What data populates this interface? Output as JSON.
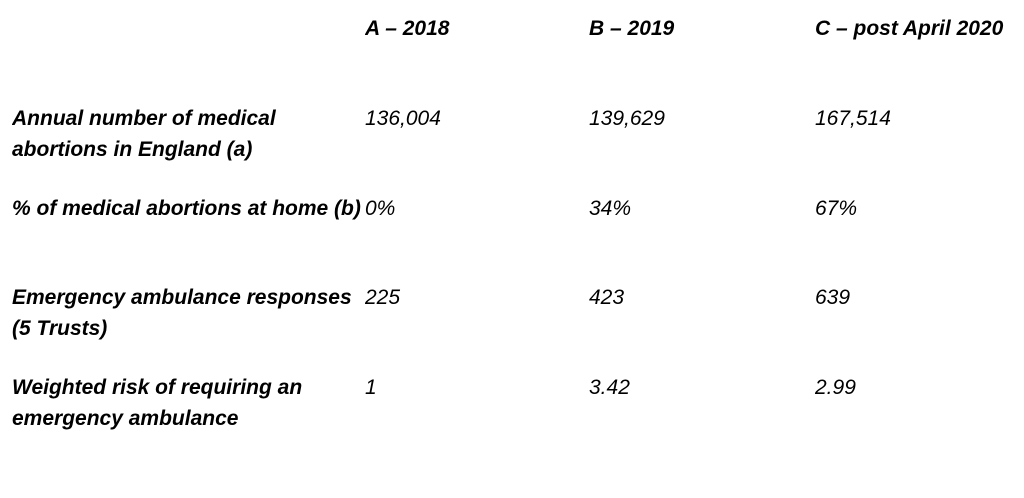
{
  "table": {
    "corner_label": "",
    "columns": [
      "A – 2018",
      "B – 2019",
      "C – post April 2020"
    ],
    "rows": [
      {
        "label": "Annual number of medical abortions in England (a)",
        "values": [
          "136,004",
          "139,629",
          "167,514"
        ]
      },
      {
        "label": "% of medical abortions at home (b)",
        "values": [
          "0%",
          "34%",
          "67%"
        ]
      },
      {
        "label": "Emergency ambulance responses (5 Trusts)",
        "values": [
          "225",
          "423",
          "639"
        ]
      },
      {
        "label": "Weighted risk of requiring an emergency ambulance",
        "values": [
          "1",
          "3.42",
          "2.99"
        ]
      }
    ]
  },
  "chart_data": {
    "type": "table",
    "columns": [
      "",
      "A – 2018",
      "B – 2019",
      "C – post April 2020"
    ],
    "rows": [
      [
        "Annual number of medical abortions in England (a)",
        "136,004",
        "139,629",
        "167,514"
      ],
      [
        "% of medical abortions at home (b)",
        "0%",
        "34%",
        "67%"
      ],
      [
        "Emergency ambulance responses (5 Trusts)",
        "225",
        "423",
        "639"
      ],
      [
        "Weighted risk of requiring an emergency ambulance",
        "1",
        "3.42",
        "2.99"
      ]
    ]
  },
  "colors": {
    "text": "#000000",
    "background": "#ffffff"
  }
}
